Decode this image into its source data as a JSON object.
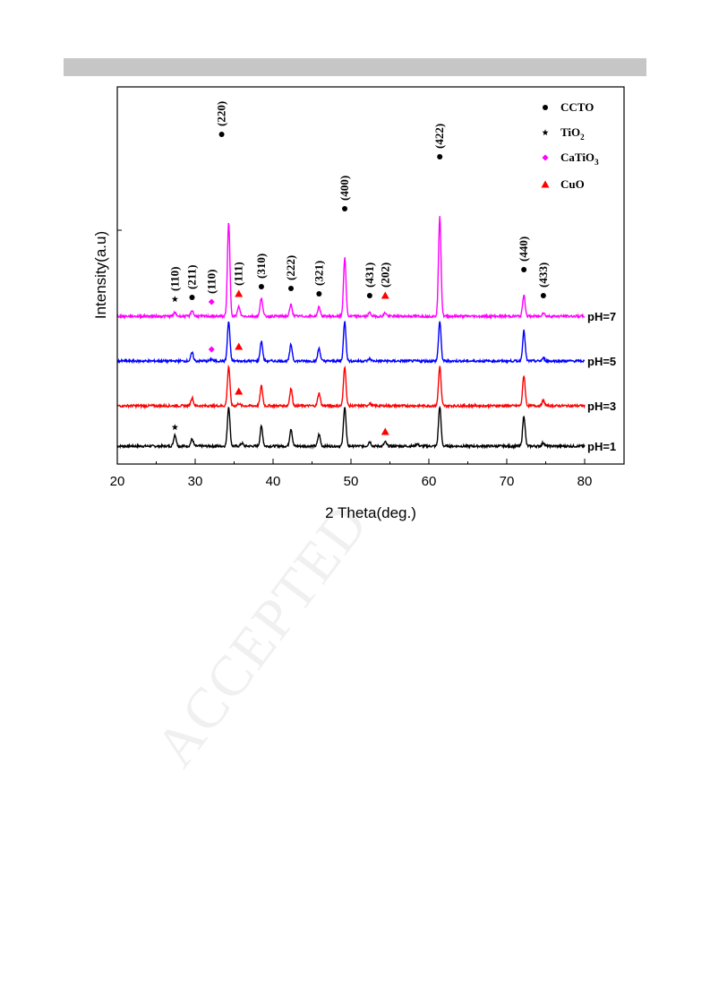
{
  "page": {
    "watermark": "ACCEPTED"
  },
  "chart_data": {
    "type": "line",
    "xlabel": "2 Theta(deg.)",
    "ylabel": "Intensity(a.u)",
    "xlim": [
      20,
      85
    ],
    "xticks": [
      20,
      30,
      40,
      50,
      60,
      70,
      80
    ],
    "grid": false,
    "legend_position": "top-right",
    "legend": [
      {
        "symbol": "circle",
        "label": "CCTO",
        "color": "#000000"
      },
      {
        "symbol": "star",
        "label": "TiO",
        "sub": "2",
        "color": "#000000"
      },
      {
        "symbol": "diamond",
        "label": "CaTiO",
        "sub": "3",
        "color": "#ff00ff"
      },
      {
        "symbol": "triangle",
        "label": "CuO",
        "color": "#ff0000"
      }
    ],
    "series": [
      {
        "name": "pH=1",
        "color": "#000000",
        "baseline": 0,
        "peaks": [
          [
            27.4,
            1.0
          ],
          [
            29.6,
            0.6
          ],
          [
            34.3,
            3.4
          ],
          [
            36.0,
            0.25
          ],
          [
            38.5,
            1.7
          ],
          [
            42.3,
            1.5
          ],
          [
            45.9,
            1.0
          ],
          [
            49.2,
            3.4
          ],
          [
            52.4,
            0.4
          ],
          [
            54.4,
            0.35
          ],
          [
            58.5,
            0.2
          ],
          [
            61.4,
            3.4
          ],
          [
            72.2,
            2.6
          ],
          [
            74.7,
            0.3
          ]
        ]
      },
      {
        "name": "pH=3",
        "color": "#ff0000",
        "baseline": 1.0,
        "peaks": [
          [
            29.6,
            0.7
          ],
          [
            34.3,
            3.4
          ],
          [
            35.6,
            0.2
          ],
          [
            38.5,
            1.7
          ],
          [
            42.3,
            1.5
          ],
          [
            45.9,
            1.1
          ],
          [
            49.2,
            3.4
          ],
          [
            52.4,
            0.2
          ],
          [
            61.4,
            3.4
          ],
          [
            72.2,
            2.6
          ],
          [
            74.7,
            0.45
          ]
        ]
      },
      {
        "name": "pH=5",
        "color": "#0000ff",
        "baseline": 2.0,
        "peaks": [
          [
            29.6,
            0.7
          ],
          [
            32.1,
            0.15
          ],
          [
            34.3,
            3.4
          ],
          [
            38.5,
            1.7
          ],
          [
            42.3,
            1.4
          ],
          [
            45.9,
            1.1
          ],
          [
            49.2,
            3.4
          ],
          [
            52.4,
            0.2
          ],
          [
            61.4,
            3.4
          ],
          [
            72.2,
            2.6
          ],
          [
            74.7,
            0.25
          ]
        ]
      },
      {
        "name": "pH=7",
        "color": "#ff00ff",
        "baseline": 3.0,
        "peaks": [
          [
            27.4,
            0.3
          ],
          [
            29.6,
            0.5
          ],
          [
            34.3,
            8.0
          ],
          [
            35.6,
            0.8
          ],
          [
            38.5,
            1.6
          ],
          [
            42.3,
            1.0
          ],
          [
            45.9,
            0.8
          ],
          [
            49.2,
            5.0
          ],
          [
            52.4,
            0.3
          ],
          [
            54.4,
            0.3
          ],
          [
            61.4,
            8.5
          ],
          [
            72.2,
            1.8
          ],
          [
            74.7,
            0.3
          ]
        ]
      }
    ],
    "peak_annotations": [
      {
        "x": 27.4,
        "label": "(110)",
        "marker": "star",
        "color": "#000000"
      },
      {
        "x": 29.6,
        "label": "(211)",
        "marker": "circle",
        "color": "#000000"
      },
      {
        "x": 32.1,
        "label": "(110)",
        "marker": "diamond",
        "color": "#ff00ff"
      },
      {
        "x": 33.4,
        "label": "(220)",
        "marker": "circle",
        "color": "#000000"
      },
      {
        "x": 35.6,
        "label": "(111)",
        "marker": "triangle",
        "color": "#ff0000"
      },
      {
        "x": 38.5,
        "label": "(310)",
        "marker": "circle",
        "color": "#000000"
      },
      {
        "x": 42.3,
        "label": "(222)",
        "marker": "circle",
        "color": "#000000"
      },
      {
        "x": 45.9,
        "label": "(321)",
        "marker": "circle",
        "color": "#000000"
      },
      {
        "x": 49.2,
        "label": "(400)",
        "marker": "circle",
        "color": "#000000"
      },
      {
        "x": 52.4,
        "label": "(431)",
        "marker": "circle",
        "color": "#000000"
      },
      {
        "x": 54.4,
        "label": "(202)",
        "marker": "triangle",
        "color": "#ff0000"
      },
      {
        "x": 61.4,
        "label": "(422)",
        "marker": "circle",
        "color": "#000000"
      },
      {
        "x": 72.2,
        "label": "(440)",
        "marker": "circle",
        "color": "#000000"
      },
      {
        "x": 74.7,
        "label": "(433)",
        "marker": "circle",
        "color": "#000000"
      }
    ],
    "extra_markers": [
      {
        "x": 27.4,
        "series": "pH=1",
        "marker": "star",
        "color": "#000000"
      },
      {
        "x": 54.4,
        "series": "pH=1",
        "marker": "triangle",
        "color": "#ff0000"
      },
      {
        "x": 35.6,
        "series": "pH=3",
        "marker": "triangle",
        "color": "#ff0000"
      },
      {
        "x": 32.1,
        "series": "pH=5",
        "marker": "diamond",
        "color": "#ff00ff"
      },
      {
        "x": 35.6,
        "series": "pH=5",
        "marker": "triangle",
        "color": "#ff0000"
      }
    ]
  }
}
